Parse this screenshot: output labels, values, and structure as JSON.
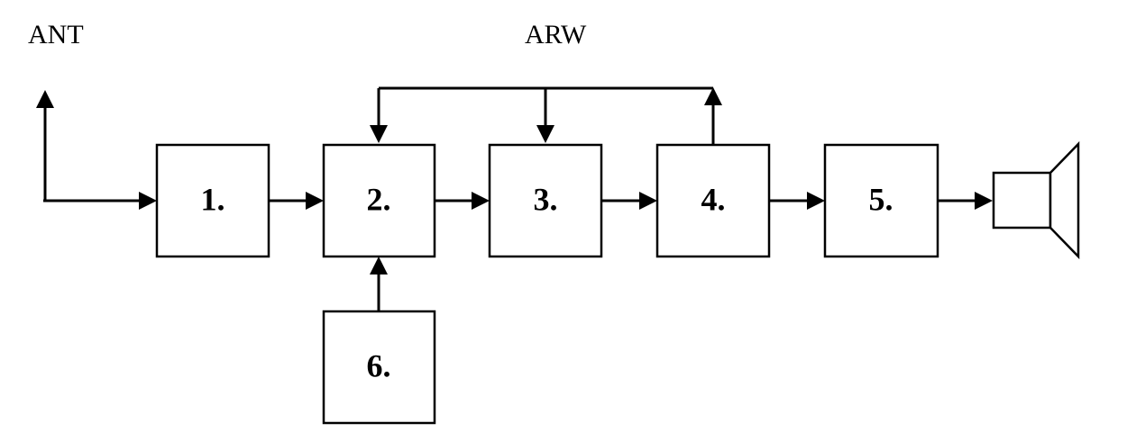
{
  "labels": {
    "antenna": "ANT",
    "agc": "ARW"
  },
  "blocks": [
    {
      "id": "1",
      "label": "1."
    },
    {
      "id": "2",
      "label": "2."
    },
    {
      "id": "3",
      "label": "3."
    },
    {
      "id": "4",
      "label": "4."
    },
    {
      "id": "5",
      "label": "5."
    },
    {
      "id": "6",
      "label": "6."
    }
  ],
  "icons": {
    "antenna": "antenna-icon",
    "output": "speaker-icon"
  },
  "colors": {
    "line": "#000000",
    "background": "#ffffff"
  }
}
